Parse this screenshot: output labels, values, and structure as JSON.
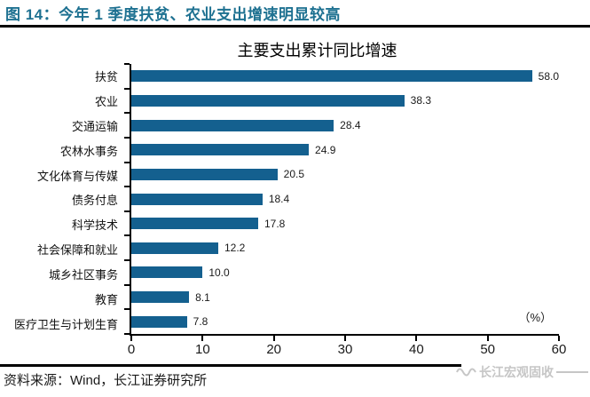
{
  "header": {
    "title": "图 14：今年 1 季度扶贫、农业支出增速明显较高"
  },
  "chart_data": {
    "type": "bar",
    "orientation": "horizontal",
    "title": "主要支出累计同比增速",
    "unit_label": "（%）",
    "categories": [
      "扶贫",
      "农业",
      "交通运输",
      "农林水事务",
      "文化体育与传媒",
      "债务付息",
      "科学技术",
      "社会保障和就业",
      "城乡社区事务",
      "教育",
      "医疗卫生与计划生育"
    ],
    "values": [
      58.0,
      38.3,
      28.4,
      24.9,
      20.5,
      18.4,
      17.8,
      12.2,
      10.0,
      8.1,
      7.8
    ],
    "value_label_decimals": 1,
    "xlim": [
      0,
      60
    ],
    "x_tick_labels": [
      "0",
      "10",
      "20",
      "30",
      "40",
      "50",
      "60"
    ],
    "grid": false,
    "legend": false
  },
  "footer": {
    "source": "资料来源：Wind，长江证券研究所",
    "watermark": "长江宏观固收"
  },
  "colors": {
    "header_text": "#1e7191",
    "bar": "#14608f",
    "axis": "#000000",
    "watermark": "#c6c6c6"
  }
}
